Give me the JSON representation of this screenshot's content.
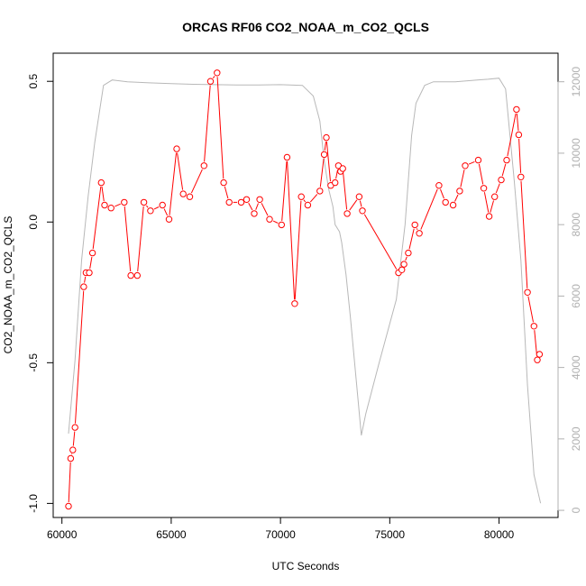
{
  "chart_data": {
    "type": "line",
    "title": "ORCAS RF06 CO2_NOAA_m_CO2_QCLS",
    "xlabel": "UTC Seconds",
    "ylabel": "CO2_NOAA_m_CO2_QCLS",
    "xlim": [
      59600,
      82700
    ],
    "ylim": [
      -1.05,
      0.6
    ],
    "y2lim": [
      -200,
      12800
    ],
    "x_ticks": [
      60000,
      65000,
      70000,
      75000,
      80000
    ],
    "y_ticks": [
      -1.0,
      -0.5,
      0.0,
      0.5
    ],
    "y2_ticks": [
      0,
      2000,
      4000,
      6000,
      8000,
      10000,
      12000
    ],
    "x_tick_labels": [
      "60000",
      "65000",
      "70000",
      "75000",
      "80000"
    ],
    "y_tick_labels": [
      "-1.0",
      "-0.5",
      "0.0",
      "0.5"
    ],
    "y2_tick_labels": [
      "0",
      "2000",
      "4000",
      "6000",
      "8000",
      "10000",
      "12000"
    ],
    "grid": false,
    "colors": {
      "series": "#ff0000",
      "secondary": "#b8b8b8"
    },
    "series": [
      {
        "axis": "left",
        "style": "line+points",
        "x": [
          60300,
          60400,
          60500,
          60600,
          61000,
          61100,
          61250,
          61400,
          61800,
          61950,
          62250,
          62850,
          63150,
          63450,
          63750,
          64050,
          64600,
          64900,
          65250,
          65550,
          65850,
          66500,
          66800,
          67100,
          67400,
          67650,
          68200,
          68450,
          68800,
          69050,
          69500,
          70050,
          70300,
          70650,
          70950,
          71250,
          71800,
          72000,
          72100,
          72300,
          72500,
          72650,
          72750,
          72850,
          73050,
          73600,
          73750,
          75400,
          75550,
          75650,
          75850,
          76150,
          76350,
          77250,
          77550,
          77900,
          78200,
          78450,
          79050,
          79300,
          79550,
          79800,
          80100,
          80350,
          80800,
          80900,
          81000,
          81300,
          81600,
          81750,
          81850
        ],
        "y": [
          -1.01,
          -0.84,
          -0.81,
          -0.73,
          -0.23,
          -0.18,
          -0.18,
          -0.11,
          0.14,
          0.06,
          0.05,
          0.07,
          -0.19,
          -0.19,
          0.07,
          0.04,
          0.06,
          0.01,
          0.26,
          0.1,
          0.09,
          0.2,
          0.5,
          0.53,
          0.14,
          0.07,
          0.07,
          0.08,
          0.03,
          0.08,
          0.01,
          -0.01,
          0.23,
          -0.29,
          0.09,
          0.06,
          0.11,
          0.24,
          0.3,
          0.13,
          0.14,
          0.2,
          0.18,
          0.19,
          0.03,
          0.09,
          0.04,
          -0.18,
          -0.17,
          -0.15,
          -0.11,
          -0.01,
          -0.04,
          0.13,
          0.07,
          0.06,
          0.11,
          0.2,
          0.22,
          0.12,
          0.02,
          0.09,
          0.15,
          0.22,
          0.4,
          0.31,
          0.16,
          -0.25,
          -0.37,
          -0.49,
          -0.47
        ]
      },
      {
        "axis": "right",
        "style": "line",
        "x": [
          60300,
          60600,
          60900,
          61200,
          61500,
          61900,
          62300,
          63000,
          64000,
          65000,
          66000,
          67000,
          68000,
          69000,
          70000,
          71000,
          71500,
          71800,
          72000,
          72200,
          72400,
          72500,
          72700,
          72800,
          73000,
          73200,
          73700,
          73900,
          74500,
          75300,
          75700,
          76000,
          76200,
          76600,
          77000,
          78000,
          79000,
          79500,
          80000,
          80300,
          80700,
          81000,
          81300,
          81600,
          81900
        ],
        "y": [
          2150,
          4200,
          7000,
          8800,
          10300,
          11900,
          12050,
          12000,
          11970,
          11950,
          11930,
          11920,
          11910,
          11910,
          11920,
          11900,
          11600,
          10900,
          9800,
          9000,
          8500,
          8000,
          7800,
          7500,
          6600,
          5400,
          2100,
          2700,
          4100,
          5900,
          8000,
          10500,
          11400,
          11900,
          12000,
          12000,
          12050,
          12070,
          12100,
          11800,
          9200,
          7000,
          3500,
          1000,
          200
        ]
      }
    ]
  }
}
